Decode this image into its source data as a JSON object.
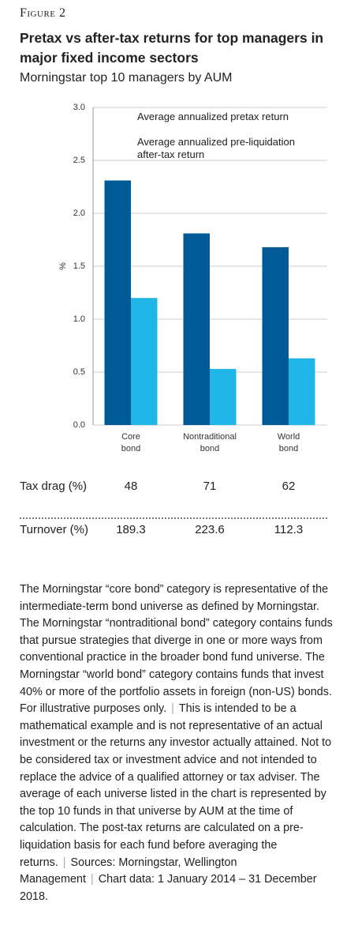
{
  "header": {
    "figure": "Figure 2"
  },
  "chart_data": {
    "type": "bar",
    "title": "Pretax vs after-tax returns for top managers in major fixed income sectors",
    "subtitle": "Morningstar top 10 managers by AUM",
    "y_label": "%",
    "categories": [
      "Core bond",
      "Nontraditional bond",
      "World bond"
    ],
    "series": [
      {
        "name": "Average annualized pretax return",
        "color": "#005a96",
        "values": [
          2.31,
          1.81,
          1.68
        ]
      },
      {
        "name": "Average annualized pre-liquidation after-tax return",
        "color": "#1fb5e6",
        "values": [
          1.2,
          0.53,
          0.63
        ]
      }
    ],
    "ylim": [
      0,
      3
    ],
    "yticks": [
      {
        "value": 0,
        "label": "0.0"
      },
      {
        "value": 0.5,
        "label": "0.5"
      },
      {
        "value": 1,
        "label": "1.0"
      },
      {
        "value": 1.5,
        "label": "1.5"
      },
      {
        "value": 2,
        "label": "2.0"
      },
      {
        "value": 2.5,
        "label": "2.5"
      },
      {
        "value": 3,
        "label": "3.0"
      }
    ],
    "grid": true
  },
  "table": {
    "rows": [
      {
        "label": "Tax drag (%)",
        "values": [
          48,
          71,
          62
        ]
      },
      {
        "label": "Turnover (%)",
        "values": [
          189.3,
          223.6,
          112.3
        ]
      }
    ]
  },
  "notes": [
    "The Morningstar “core bond” category is representative of the intermediate-term bond universe as defined by Morningstar. The Morningstar “nontraditional bond” category contains funds that pursue strategies that diverge in one or more ways from conventional practice in the broader bond fund universe. The Morningstar “world bond” category contains funds that invest 40% or more of the portfolio assets in foreign (non-US) bonds. For illustrative purposes only.",
    "This is intended to be a mathematical example and is not representative of an actual investment or the returns any investor actually attained. Not to be considered tax or investment advice and not intended to replace the advice of a qualified attorney or tax adviser. The average of each universe listed in the chart is represented by the top 10 funds in that universe by AUM at the time of calculation. The post-tax returns are calculated on a pre-liquidation basis for each fund before averaging the returns.",
    "Sources: Morningstar, Wellington Management",
    "Chart data: 1 January 2014 – 31 December 2018."
  ]
}
